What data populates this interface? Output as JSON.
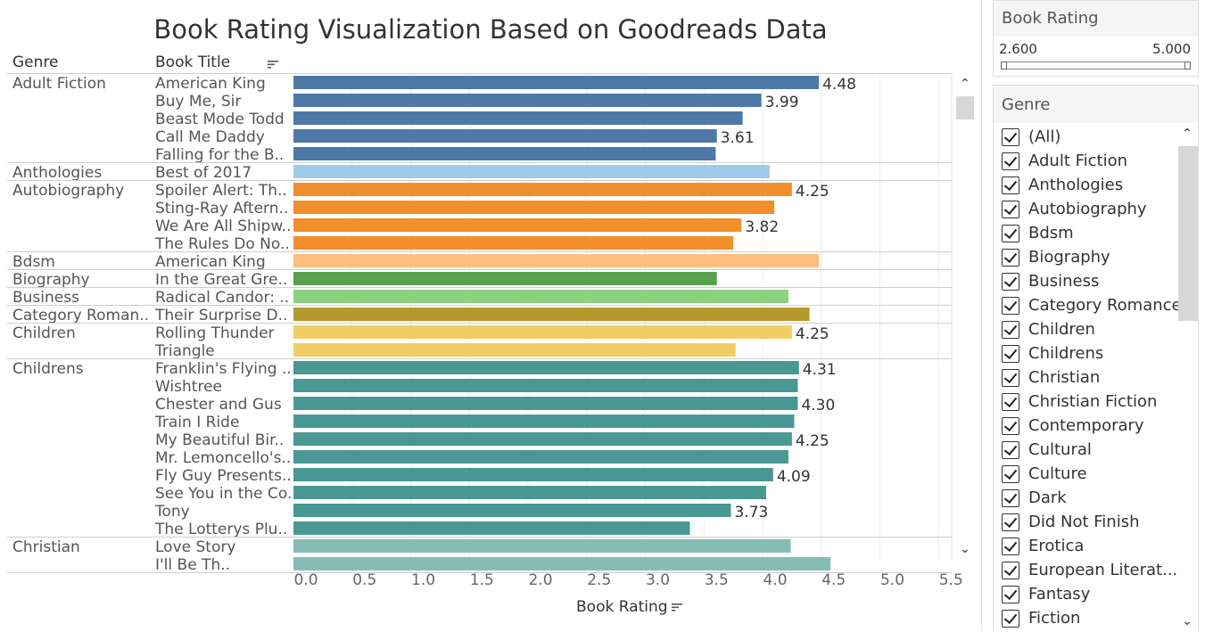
{
  "title": "Book Rating Visualization Based on Goodreads Data",
  "columns": {
    "genre": "Genre",
    "book_title": "Book Title"
  },
  "icons": {
    "sort": "sort-descending-icon",
    "scroll_up": "chevron-up-icon",
    "scroll_down": "chevron-down-icon",
    "checkbox": "checkbox-checked-icon"
  },
  "chart_data": {
    "type": "bar",
    "orientation": "horizontal",
    "xlabel": "Book Rating",
    "xlim": [
      0,
      5.5
    ],
    "xticks": [
      "0.0",
      "0.5",
      "1.0",
      "1.5",
      "2.0",
      "2.5",
      "3.0",
      "3.5",
      "4.0",
      "4.5",
      "5.0",
      "5.5"
    ],
    "grid": true,
    "groups": [
      {
        "genre": "Adult Fiction",
        "color": "#4e79a7",
        "rows": [
          {
            "title": "American King",
            "value": 4.48,
            "label": "4.48"
          },
          {
            "title": "Buy Me, Sir",
            "value": 3.99,
            "label": "3.99"
          },
          {
            "title": "Beast Mode Todd",
            "value": 3.83,
            "label": ""
          },
          {
            "title": "Call Me Daddy",
            "value": 3.61,
            "label": "3.61"
          },
          {
            "title": "Falling for the B..",
            "value": 3.6,
            "label": ""
          }
        ]
      },
      {
        "genre": "Anthologies",
        "color": "#a0cbe8",
        "rows": [
          {
            "title": "Best of 2017",
            "value": 4.06,
            "label": ""
          }
        ]
      },
      {
        "genre": "Autobiography",
        "color": "#f28e2b",
        "rows": [
          {
            "title": "Spoiler Alert: Th..",
            "value": 4.25,
            "label": "4.25"
          },
          {
            "title": "Sting-Ray Aftern..",
            "value": 4.1,
            "label": ""
          },
          {
            "title": "We Are All Shipw..",
            "value": 3.82,
            "label": "3.82"
          },
          {
            "title": "The Rules Do No..",
            "value": 3.75,
            "label": ""
          }
        ]
      },
      {
        "genre": "Bdsm",
        "color": "#ffbe7d",
        "rows": [
          {
            "title": "American King",
            "value": 4.48,
            "label": ""
          }
        ]
      },
      {
        "genre": "Biography",
        "color": "#59a14f",
        "rows": [
          {
            "title": "In the Great Gre..",
            "value": 3.61,
            "label": ""
          }
        ]
      },
      {
        "genre": "Business",
        "color": "#8cd17d",
        "rows": [
          {
            "title": "Radical Candor: ..",
            "value": 4.22,
            "label": ""
          }
        ]
      },
      {
        "genre": "Category Roman..",
        "color": "#b6992d",
        "rows": [
          {
            "title": "Their Surprise D..",
            "value": 4.4,
            "label": ""
          }
        ]
      },
      {
        "genre": "Children",
        "color": "#f1ce63",
        "rows": [
          {
            "title": "Rolling Thunder",
            "value": 4.25,
            "label": "4.25"
          },
          {
            "title": "Triangle",
            "value": 3.77,
            "label": ""
          }
        ]
      },
      {
        "genre": "Childrens",
        "color": "#499894",
        "rows": [
          {
            "title": "Franklin's Flying ..",
            "value": 4.31,
            "label": "4.31"
          },
          {
            "title": "Wishtree",
            "value": 4.3,
            "label": ""
          },
          {
            "title": "Chester and Gus",
            "value": 4.3,
            "label": "4.30"
          },
          {
            "title": "Train I Ride",
            "value": 4.27,
            "label": ""
          },
          {
            "title": "My Beautiful Bir..",
            "value": 4.25,
            "label": "4.25"
          },
          {
            "title": "Mr. Lemoncello's..",
            "value": 4.22,
            "label": ""
          },
          {
            "title": "Fly Guy Presents..",
            "value": 4.09,
            "label": "4.09"
          },
          {
            "title": "See You in the Co..",
            "value": 4.03,
            "label": ""
          },
          {
            "title": "Tony",
            "value": 3.73,
            "label": "3.73"
          },
          {
            "title": "The Lotterys Plu..",
            "value": 3.38,
            "label": ""
          }
        ]
      },
      {
        "genre": "Christian",
        "color": "#86bcb6",
        "rows": [
          {
            "title": "Love Story",
            "value": 4.24,
            "label": ""
          },
          {
            "title": "I'll Be Th..",
            "value": 4.58,
            "label": ""
          }
        ]
      }
    ]
  },
  "rating_filter": {
    "title": "Book Rating",
    "min": "2.600",
    "max": "5.000"
  },
  "genre_filter": {
    "title": "Genre",
    "items": [
      "(All)",
      "Adult Fiction",
      "Anthologies",
      "Autobiography",
      "Bdsm",
      "Biography",
      "Business",
      "Category Romance",
      "Children",
      "Childrens",
      "Christian",
      "Christian Fiction",
      "Contemporary",
      "Cultural",
      "Culture",
      "Dark",
      "Did Not Finish",
      "Erotica",
      "European Literat...",
      "Fantasy",
      "Fiction"
    ]
  }
}
